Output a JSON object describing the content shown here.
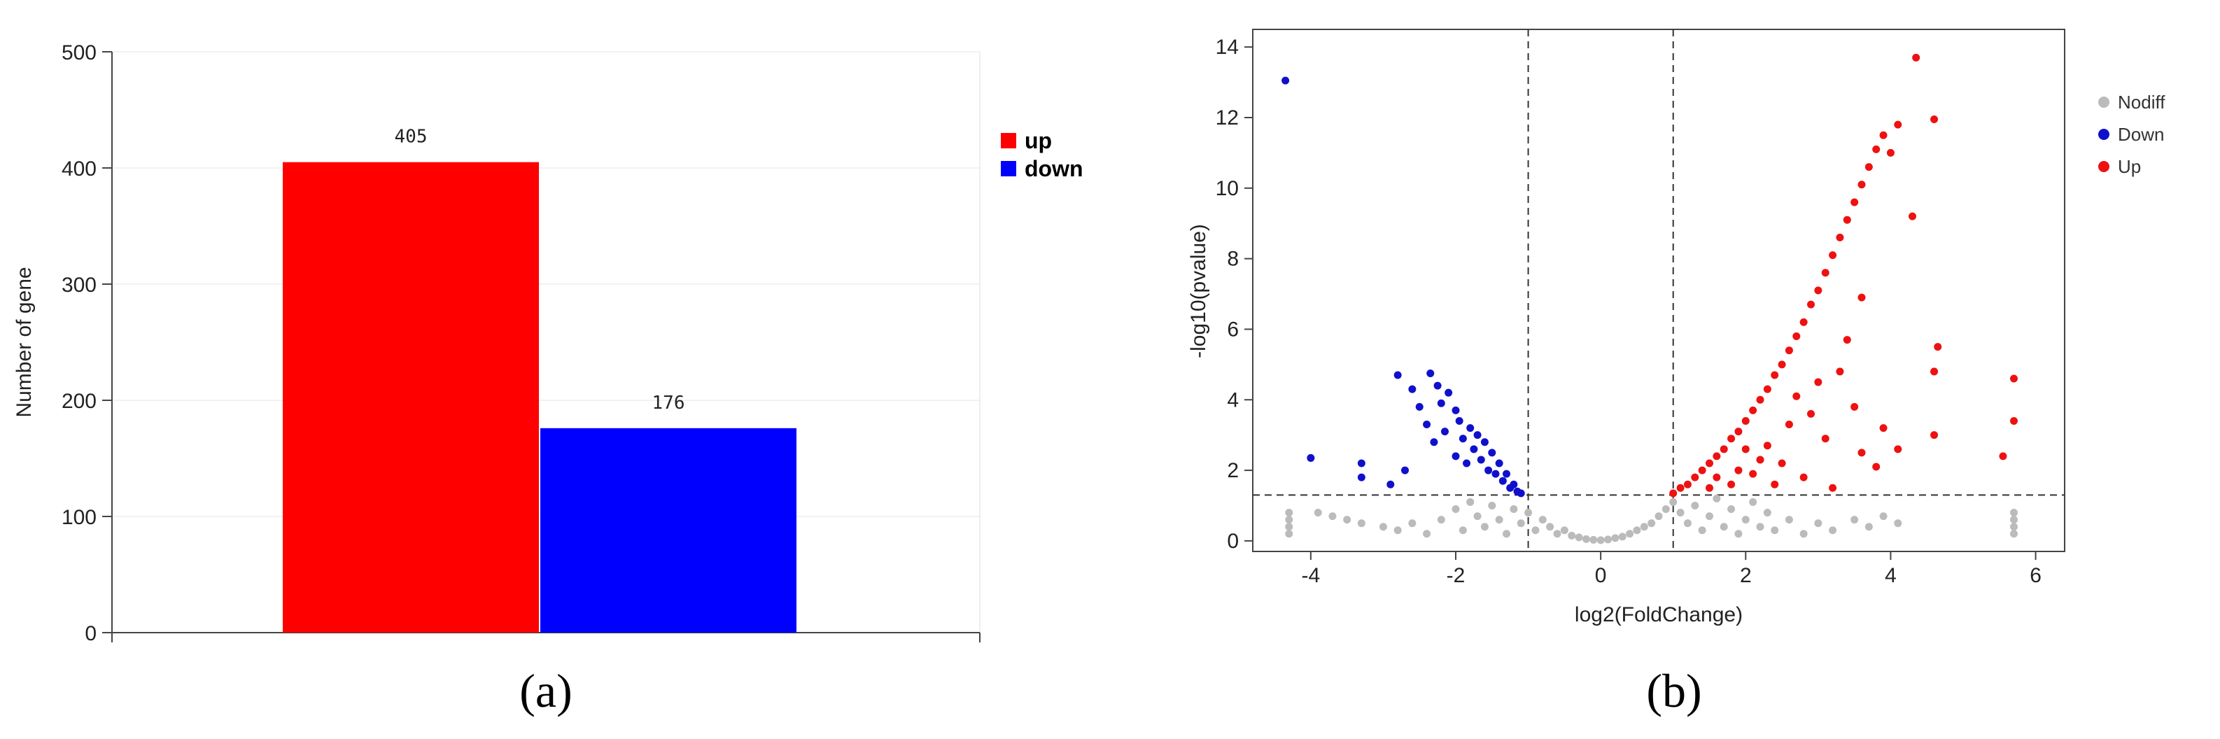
{
  "panels": {
    "a_label": "(a)",
    "b_label": "(b)"
  },
  "chart_data": [
    {
      "type": "bar",
      "title": "",
      "xlabel": "",
      "ylabel": "Number of gene",
      "ylim": [
        0,
        500
      ],
      "yticks": [
        0,
        100,
        200,
        300,
        400,
        500
      ],
      "grid": true,
      "legend_position": "right",
      "categories": [
        ""
      ],
      "series": [
        {
          "name": "up",
          "values": [
            405
          ],
          "color": "#ff0000"
        },
        {
          "name": "down",
          "values": [
            176
          ],
          "color": "#0000ff"
        }
      ],
      "data_labels": [
        "405",
        "176"
      ]
    },
    {
      "type": "scatter",
      "title": "",
      "xlabel": "log2(FoldChange)",
      "ylabel": "-log10(pvalue)",
      "xlim": [
        -4.8,
        6.4
      ],
      "ylim": [
        -0.3,
        14.5
      ],
      "xticks": [
        -4,
        -2,
        0,
        2,
        4,
        6
      ],
      "yticks": [
        0,
        2,
        4,
        6,
        8,
        10,
        12,
        14
      ],
      "grid": false,
      "legend_position": "top-right",
      "thresholds": {
        "x": [
          -1,
          1
        ],
        "y": 1.3
      },
      "series": [
        {
          "name": "Nodiff",
          "color": "#bbbbbb",
          "points": [
            [
              -4.3,
              0.2
            ],
            [
              -4.3,
              0.4
            ],
            [
              -4.3,
              0.6
            ],
            [
              -4.3,
              0.8
            ],
            [
              -3.9,
              0.8
            ],
            [
              -3.7,
              0.7
            ],
            [
              -3.5,
              0.6
            ],
            [
              -3.3,
              0.5
            ],
            [
              -3.0,
              0.4
            ],
            [
              -2.8,
              0.3
            ],
            [
              -2.6,
              0.5
            ],
            [
              -2.4,
              0.2
            ],
            [
              -2.2,
              0.6
            ],
            [
              -2.0,
              0.9
            ],
            [
              -1.9,
              0.3
            ],
            [
              -1.8,
              1.1
            ],
            [
              -1.7,
              0.7
            ],
            [
              -1.6,
              0.4
            ],
            [
              -1.5,
              1.0
            ],
            [
              -1.4,
              0.6
            ],
            [
              -1.3,
              0.2
            ],
            [
              -1.2,
              0.9
            ],
            [
              -1.1,
              0.5
            ],
            [
              -1.0,
              0.8
            ],
            [
              -0.9,
              0.3
            ],
            [
              -0.8,
              0.6
            ],
            [
              -0.7,
              0.4
            ],
            [
              -0.6,
              0.2
            ],
            [
              -0.5,
              0.3
            ],
            [
              -0.4,
              0.15
            ],
            [
              -0.3,
              0.1
            ],
            [
              -0.2,
              0.05
            ],
            [
              -0.1,
              0.03
            ],
            [
              0.0,
              0.02
            ],
            [
              0.1,
              0.04
            ],
            [
              0.2,
              0.08
            ],
            [
              0.3,
              0.12
            ],
            [
              0.4,
              0.2
            ],
            [
              0.5,
              0.3
            ],
            [
              0.6,
              0.4
            ],
            [
              0.7,
              0.5
            ],
            [
              0.8,
              0.7
            ],
            [
              0.9,
              0.9
            ],
            [
              1.0,
              1.1
            ],
            [
              1.1,
              0.8
            ],
            [
              1.2,
              0.5
            ],
            [
              1.3,
              1.0
            ],
            [
              1.4,
              0.3
            ],
            [
              1.5,
              0.7
            ],
            [
              1.6,
              1.2
            ],
            [
              1.7,
              0.4
            ],
            [
              1.8,
              0.9
            ],
            [
              1.9,
              0.2
            ],
            [
              2.0,
              0.6
            ],
            [
              2.1,
              1.1
            ],
            [
              2.2,
              0.4
            ],
            [
              2.3,
              0.8
            ],
            [
              2.4,
              0.3
            ],
            [
              2.6,
              0.6
            ],
            [
              2.8,
              0.2
            ],
            [
              3.0,
              0.5
            ],
            [
              3.2,
              0.3
            ],
            [
              3.5,
              0.6
            ],
            [
              3.7,
              0.4
            ],
            [
              3.9,
              0.7
            ],
            [
              4.1,
              0.5
            ],
            [
              5.7,
              0.2
            ],
            [
              5.7,
              0.4
            ],
            [
              5.7,
              0.6
            ],
            [
              5.7,
              0.8
            ]
          ]
        },
        {
          "name": "Down",
          "color": "#1010cc",
          "points": [
            [
              -4.35,
              13.05
            ],
            [
              -4.0,
              2.35
            ],
            [
              -3.3,
              2.2
            ],
            [
              -3.3,
              1.8
            ],
            [
              -2.9,
              1.6
            ],
            [
              -2.8,
              4.7
            ],
            [
              -2.7,
              2.0
            ],
            [
              -2.6,
              4.3
            ],
            [
              -2.5,
              3.8
            ],
            [
              -2.4,
              3.3
            ],
            [
              -2.35,
              4.75
            ],
            [
              -2.3,
              2.8
            ],
            [
              -2.25,
              4.4
            ],
            [
              -2.2,
              3.9
            ],
            [
              -2.15,
              3.1
            ],
            [
              -2.1,
              4.2
            ],
            [
              -2.0,
              3.7
            ],
            [
              -2.0,
              2.4
            ],
            [
              -1.95,
              3.4
            ],
            [
              -1.9,
              2.9
            ],
            [
              -1.85,
              2.2
            ],
            [
              -1.8,
              3.2
            ],
            [
              -1.75,
              2.6
            ],
            [
              -1.7,
              3.0
            ],
            [
              -1.65,
              2.3
            ],
            [
              -1.6,
              2.8
            ],
            [
              -1.55,
              2.0
            ],
            [
              -1.5,
              2.5
            ],
            [
              -1.45,
              1.9
            ],
            [
              -1.4,
              2.2
            ],
            [
              -1.35,
              1.7
            ],
            [
              -1.3,
              1.9
            ],
            [
              -1.25,
              1.5
            ],
            [
              -1.2,
              1.6
            ],
            [
              -1.15,
              1.4
            ],
            [
              -1.1,
              1.35
            ]
          ]
        },
        {
          "name": "Up",
          "color": "#ee1111",
          "points": [
            [
              1.0,
              1.35
            ],
            [
              1.1,
              1.5
            ],
            [
              1.2,
              1.6
            ],
            [
              1.3,
              1.8
            ],
            [
              1.4,
              2.0
            ],
            [
              1.5,
              2.2
            ],
            [
              1.6,
              2.4
            ],
            [
              1.7,
              2.6
            ],
            [
              1.8,
              2.9
            ],
            [
              1.9,
              3.1
            ],
            [
              2.0,
              3.4
            ],
            [
              2.1,
              3.7
            ],
            [
              2.2,
              4.0
            ],
            [
              2.3,
              4.3
            ],
            [
              2.4,
              4.7
            ],
            [
              2.5,
              5.0
            ],
            [
              2.6,
              5.4
            ],
            [
              2.7,
              5.8
            ],
            [
              2.8,
              6.2
            ],
            [
              2.9,
              6.7
            ],
            [
              3.0,
              7.1
            ],
            [
              3.1,
              7.6
            ],
            [
              3.2,
              8.1
            ],
            [
              3.3,
              8.6
            ],
            [
              3.4,
              9.1
            ],
            [
              3.5,
              9.6
            ],
            [
              3.6,
              10.1
            ],
            [
              3.7,
              10.6
            ],
            [
              3.8,
              11.1
            ],
            [
              3.9,
              11.5
            ],
            [
              4.0,
              11.0
            ],
            [
              4.1,
              11.8
            ],
            [
              4.35,
              13.7
            ],
            [
              4.6,
              11.95
            ],
            [
              4.3,
              9.2
            ],
            [
              4.6,
              4.8
            ],
            [
              4.65,
              5.5
            ],
            [
              4.6,
              3.0
            ],
            [
              5.55,
              2.4
            ],
            [
              5.7,
              3.4
            ],
            [
              5.7,
              4.6
            ],
            [
              3.9,
              3.2
            ],
            [
              4.1,
              2.6
            ],
            [
              3.8,
              2.1
            ],
            [
              3.5,
              3.8
            ],
            [
              3.3,
              4.8
            ],
            [
              3.1,
              2.9
            ],
            [
              2.9,
              3.6
            ],
            [
              2.7,
              4.1
            ],
            [
              2.5,
              2.2
            ],
            [
              2.3,
              2.7
            ],
            [
              2.1,
              1.9
            ],
            [
              1.8,
              1.6
            ],
            [
              1.6,
              1.8
            ],
            [
              2.2,
              2.3
            ],
            [
              2.6,
              3.3
            ],
            [
              3.0,
              4.5
            ],
            [
              3.4,
              5.7
            ],
            [
              3.6,
              6.9
            ],
            [
              3.2,
              1.5
            ],
            [
              2.4,
              1.6
            ],
            [
              1.9,
              2.0
            ],
            [
              2.8,
              1.8
            ],
            [
              3.6,
              2.5
            ],
            [
              1.5,
              1.5
            ],
            [
              2.0,
              2.6
            ]
          ]
        }
      ]
    }
  ]
}
